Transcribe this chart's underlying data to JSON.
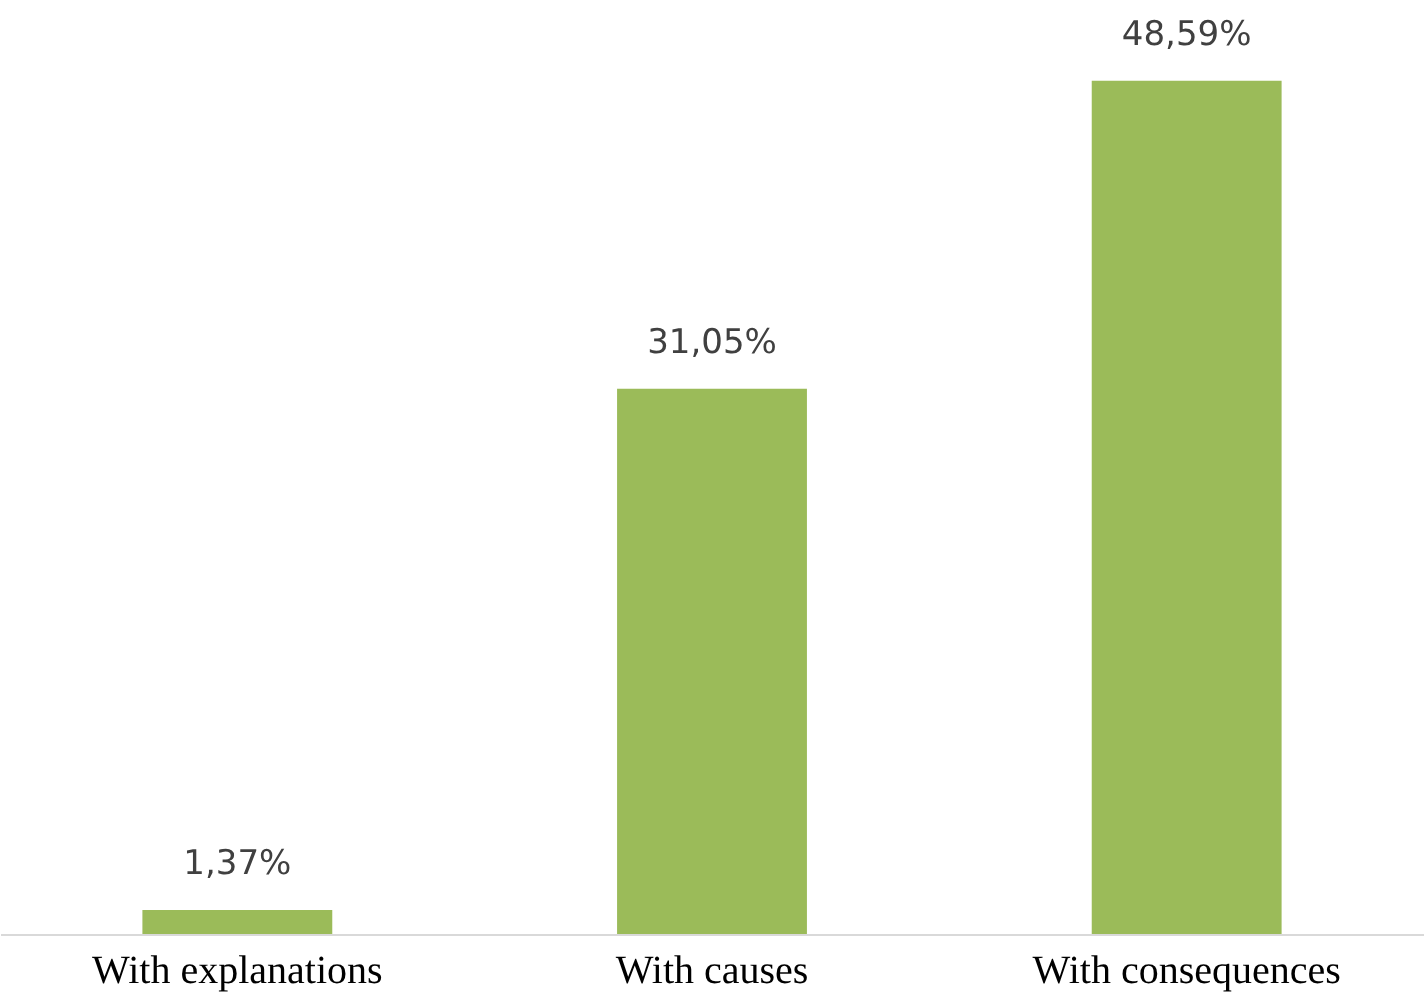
{
  "chart_data": {
    "type": "bar",
    "categories": [
      "With explanations",
      "With causes",
      "With consequences"
    ],
    "values": [
      1.37,
      31.05,
      48.59
    ],
    "value_labels": [
      "1,37%",
      "31,05%",
      "48,59%"
    ],
    "color": "#9bbb59"
  }
}
